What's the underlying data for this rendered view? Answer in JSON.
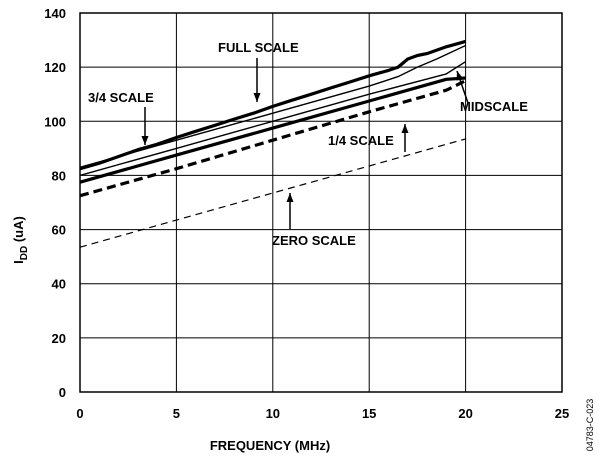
{
  "chart_data": {
    "type": "line",
    "title": "",
    "xlabel": "FREQUENCY (MHz)",
    "ylabel": {
      "main": "I",
      "sub": "DD",
      "suffix": " (uA)"
    },
    "xlim": [
      0,
      25
    ],
    "ylim": [
      0,
      140
    ],
    "xticks": [
      "0",
      "5",
      "10",
      "15",
      "20",
      "25"
    ],
    "yticks": [
      "0",
      "20",
      "40",
      "60",
      "80",
      "100",
      "120",
      "140"
    ],
    "grid": true,
    "legend": "none",
    "series": [
      {
        "style": "bold",
        "x": [
          0,
          1,
          2,
          3,
          4,
          5,
          6,
          7,
          8,
          9,
          10,
          11,
          12,
          13,
          14,
          15,
          16,
          16.5,
          17,
          17.5,
          18,
          19,
          20
        ],
        "y": [
          82.5,
          84.5,
          87,
          89.5,
          91.5,
          94,
          96.3,
          98.5,
          100.8,
          103,
          105.5,
          107.8,
          110,
          112.3,
          114.5,
          116.8,
          118.8,
          120,
          123,
          124.3,
          125,
          127.5,
          129.5
        ]
      },
      {
        "style": "thin",
        "x": [
          0,
          5,
          10,
          15,
          16.5,
          17.5,
          18.5,
          20
        ],
        "y": [
          83,
          93,
          103,
          113,
          116.5,
          120,
          123,
          128
        ]
      },
      {
        "style": "bold",
        "x": [
          0,
          5,
          10,
          15,
          19,
          20
        ],
        "y": [
          77.5,
          87.5,
          97.5,
          107.5,
          115.5,
          116
        ]
      },
      {
        "style": "thin",
        "x": [
          0,
          5,
          10,
          15,
          19,
          20
        ],
        "y": [
          80,
          90,
          100,
          110,
          117.5,
          122
        ]
      },
      {
        "style": "dash-bold",
        "x": [
          0,
          5,
          10,
          15,
          19,
          20
        ],
        "y": [
          72.5,
          82.5,
          93,
          103.5,
          111.5,
          115
        ]
      },
      {
        "style": "dash-thin",
        "x": [
          0,
          5,
          10,
          15,
          20
        ],
        "y": [
          53.5,
          63.5,
          73.5,
          83.5,
          93.5
        ]
      }
    ],
    "annotations": [
      {
        "text": "FULL SCALE"
      },
      {
        "text": "3/4 SCALE"
      },
      {
        "text": "MIDSCALE"
      },
      {
        "text": "1/4 SCALE"
      },
      {
        "text": "ZERO SCALE"
      }
    ]
  },
  "figure_id": "04783-C-023"
}
